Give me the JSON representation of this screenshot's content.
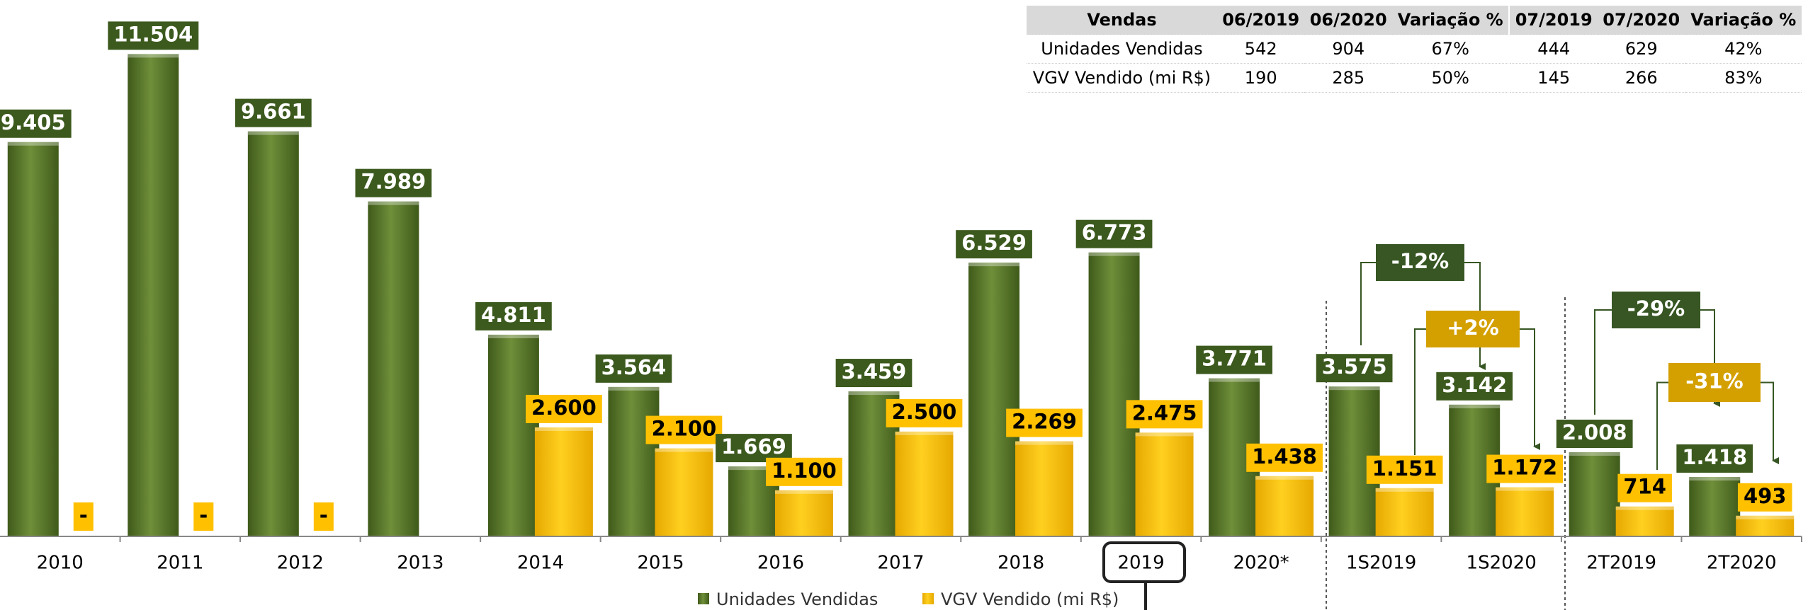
{
  "chart_data": {
    "type": "bar",
    "categories": [
      "2010",
      "2011",
      "2012",
      "2013",
      "2014",
      "2015",
      "2016",
      "2017",
      "2018",
      "2019",
      "2020*",
      "1S2019",
      "1S2020",
      "2T2019",
      "2T2020"
    ],
    "series": [
      {
        "name": "Unidades Vendidas",
        "color": "#5b7a2c",
        "values": [
          9405,
          11504,
          9661,
          7989,
          4811,
          3564,
          1669,
          3459,
          6529,
          6773,
          3771,
          3575,
          3142,
          2008,
          1418
        ],
        "value_labels": [
          "9.405",
          "11.504",
          "9.661",
          "7.989",
          "4.811",
          "3.564",
          "1.669",
          "3.459",
          "6.529",
          "6.773",
          "3.771",
          "3.575",
          "3.142",
          "2.008",
          "1.418"
        ]
      },
      {
        "name": "VGV Vendido (mi R$)",
        "color": "#ffc000",
        "values": [
          null,
          null,
          null,
          null,
          2600,
          2100,
          1100,
          2500,
          2269,
          2475,
          1438,
          1151,
          1172,
          714,
          493
        ],
        "value_labels": [
          "-",
          "-",
          "-",
          null,
          "2.600",
          "2.100",
          "1.100",
          "2.500",
          "2.269",
          "2.475",
          "1.438",
          "1.151",
          "1.172",
          "714",
          "493"
        ]
      }
    ],
    "ylim": [
      0,
      12000
    ],
    "annotations": [
      {
        "text": "-12%",
        "color": "#375623"
      },
      {
        "text": "+2%",
        "color": "#d4a000"
      },
      {
        "text": "-29%",
        "color": "#375623"
      },
      {
        "text": "-31%",
        "color": "#d4a000"
      }
    ]
  },
  "table": {
    "header": [
      "Vendas",
      "06/2019",
      "06/2020",
      "Variação %",
      "07/2019",
      "07/2020",
      "Variação %"
    ],
    "rows": [
      [
        "Unidades Vendidas",
        "542",
        "904",
        "67%",
        "444",
        "629",
        "42%"
      ],
      [
        "VGV Vendido (mi R$)",
        "190",
        "285",
        "50%",
        "145",
        "266",
        "83%"
      ]
    ]
  }
}
